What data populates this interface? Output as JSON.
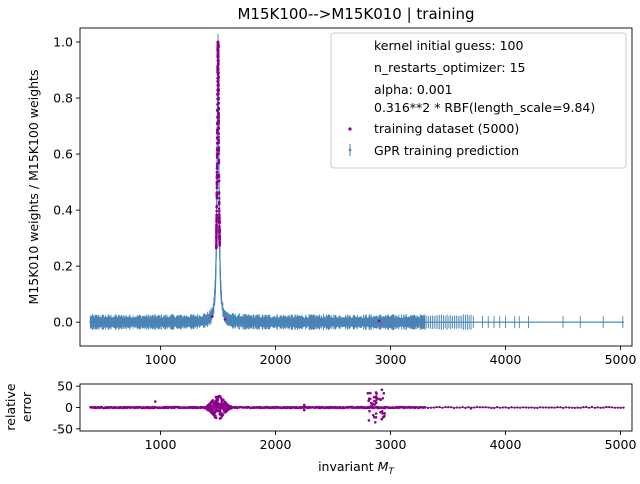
{
  "chart_data": {
    "type": "scatter",
    "title": "M15K100-->M15K010 | training",
    "xlabel": "invariant M_T",
    "ylabel": "M15K010 weights / M15K100 weights",
    "main": {
      "xlim": [
        300,
        5100
      ],
      "ylim": [
        -0.085,
        1.05
      ],
      "xticks": [
        1000,
        2000,
        3000,
        4000,
        5000
      ],
      "yticks": [
        0.0,
        0.2,
        0.4,
        0.6,
        0.8,
        1.0
      ],
      "peak_center": 1500,
      "peak_value": 1.0
    },
    "residual": {
      "ylabel": "relative\nerror",
      "ylim": [
        -55,
        55
      ],
      "yticks": [
        -50,
        0,
        50
      ],
      "xticks": [
        1000,
        2000,
        3000,
        4000,
        5000
      ]
    },
    "legend": {
      "placement": "top-right",
      "entries": [
        "kernel initial guess: 100",
        "n_restarts_optimizer: 15",
        "alpha: 0.001",
        "0.316**2 * RBF(length_scale=9.84)",
        "training dataset (5000)",
        "GPR training prediction"
      ]
    },
    "series": [
      {
        "name": "training dataset (5000)",
        "color": "#8b008b",
        "marker": "point"
      },
      {
        "name": "GPR training prediction",
        "color": "#4682b4",
        "marker": "errorbar"
      }
    ],
    "sparse_high_x": [
      3720,
      3800,
      3850,
      3900,
      3950,
      4000,
      4080,
      4120,
      4200,
      4500,
      4650,
      4850,
      5020
    ]
  }
}
